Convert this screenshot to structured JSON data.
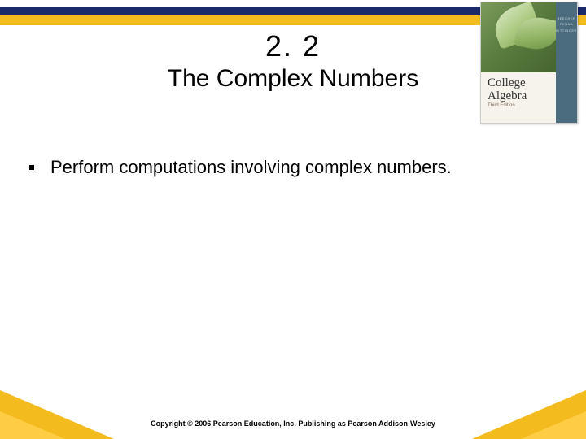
{
  "colors": {
    "band_dark": "#1a2a6b",
    "band_yellow": "#f4bb1f",
    "corner_light": "#ffcf47",
    "background": "#ffffff",
    "text": "#000000"
  },
  "book": {
    "title_line1": "College",
    "title_line2": "Algebra",
    "edition": "Third Edition",
    "sidebar_line1": "BEECHER",
    "sidebar_line2": "PENNA",
    "sidebar_line3": "BITTINGER"
  },
  "title": {
    "number": "2. 2",
    "text": "The Complex Numbers"
  },
  "bullets": [
    "Perform computations involving complex numbers."
  ],
  "copyright": "Copyright © 2006 Pearson Education, Inc.  Publishing as Pearson Addison-Wesley"
}
